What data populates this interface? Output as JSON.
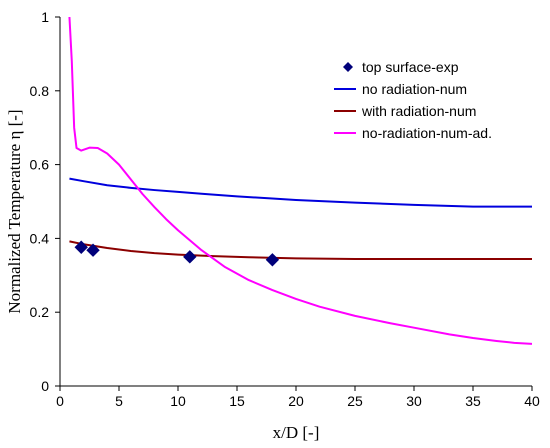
{
  "chart_data": {
    "type": "line",
    "title": "",
    "xlabel": "x/D [-]",
    "ylabel": "Normalized Temperature η [-]",
    "xlim": [
      0,
      40
    ],
    "ylim": [
      0,
      1
    ],
    "xticks": [
      "0",
      "5",
      "10",
      "15",
      "20",
      "25",
      "30",
      "35",
      "40"
    ],
    "yticks": [
      "0",
      "0.2",
      "0.4",
      "0.6",
      "0.8",
      "1"
    ],
    "grid": false,
    "legend_position": "top-right",
    "series": [
      {
        "name": "top surface-exp",
        "kind": "scatter",
        "marker": "diamond",
        "color": "#00007a",
        "points": [
          [
            1.8,
            0.376
          ],
          [
            2.8,
            0.368
          ],
          [
            11.0,
            0.35
          ],
          [
            18.0,
            0.342
          ]
        ]
      },
      {
        "name": "no radiation-num",
        "kind": "line",
        "color": "#0000dd",
        "points": [
          [
            0.8,
            0.562
          ],
          [
            2,
            0.555
          ],
          [
            4,
            0.544
          ],
          [
            6,
            0.537
          ],
          [
            8,
            0.531
          ],
          [
            10,
            0.526
          ],
          [
            12,
            0.521
          ],
          [
            15,
            0.514
          ],
          [
            18,
            0.508
          ],
          [
            20,
            0.504
          ],
          [
            25,
            0.497
          ],
          [
            30,
            0.491
          ],
          [
            35,
            0.486
          ],
          [
            40,
            0.486
          ]
        ]
      },
      {
        "name": "with radiation-num",
        "kind": "line",
        "color": "#8b0000",
        "points": [
          [
            0.8,
            0.392
          ],
          [
            2,
            0.384
          ],
          [
            4,
            0.374
          ],
          [
            6,
            0.366
          ],
          [
            8,
            0.36
          ],
          [
            10,
            0.356
          ],
          [
            13,
            0.352
          ],
          [
            16,
            0.349
          ],
          [
            20,
            0.346
          ],
          [
            25,
            0.344
          ],
          [
            30,
            0.344
          ],
          [
            35,
            0.344
          ],
          [
            40,
            0.344
          ]
        ]
      },
      {
        "name": "no-radiation-num-ad.",
        "kind": "line",
        "color": "#ff00ff",
        "points": [
          [
            0.8,
            1.0
          ],
          [
            1.0,
            0.88
          ],
          [
            1.2,
            0.7
          ],
          [
            1.4,
            0.645
          ],
          [
            1.8,
            0.638
          ],
          [
            2.5,
            0.646
          ],
          [
            3.2,
            0.645
          ],
          [
            4,
            0.63
          ],
          [
            5,
            0.6
          ],
          [
            6,
            0.56
          ],
          [
            7,
            0.52
          ],
          [
            8,
            0.485
          ],
          [
            9,
            0.452
          ],
          [
            10,
            0.422
          ],
          [
            12,
            0.368
          ],
          [
            14,
            0.322
          ],
          [
            16,
            0.287
          ],
          [
            18,
            0.26
          ],
          [
            20,
            0.236
          ],
          [
            22,
            0.215
          ],
          [
            25,
            0.19
          ],
          [
            28,
            0.17
          ],
          [
            30,
            0.158
          ],
          [
            33,
            0.14
          ],
          [
            35,
            0.13
          ],
          [
            37,
            0.122
          ],
          [
            38.5,
            0.117
          ],
          [
            40,
            0.114
          ]
        ]
      }
    ]
  }
}
